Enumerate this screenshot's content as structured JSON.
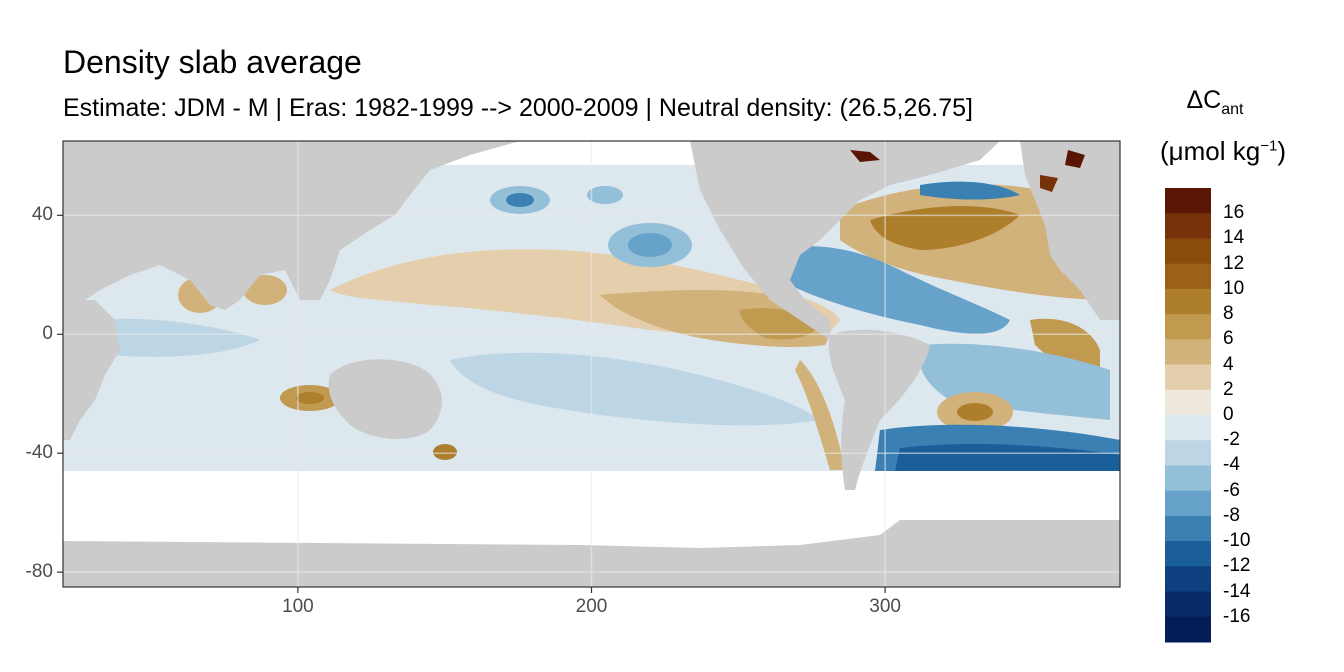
{
  "title": "Density slab average",
  "subtitle": "Estimate: JDM - M | Eras: 1982-1999 --> 2000-2009 | Neutral density: (26.5,26.75]",
  "map": {
    "lon_range": [
      20,
      380
    ],
    "lat_range": [
      -85,
      65
    ],
    "x_ticks": [
      100,
      200,
      300
    ],
    "x_tick_labels": [
      "100",
      "200",
      "300"
    ],
    "y_ticks": [
      40,
      0,
      -40,
      -80
    ],
    "y_tick_labels": [
      "40",
      "0",
      "-40",
      "-80"
    ],
    "land_color": "#cbcbcb",
    "missing_color": "#ffffff",
    "grid_color": "#ebebeb"
  },
  "legend": {
    "title_main": "ΔC",
    "title_sub": "ant",
    "unit_open": "(μmol kg",
    "unit_sup": "−1",
    "unit_close": ")",
    "labels": [
      "16",
      "14",
      "12",
      "10",
      "8",
      "6",
      "4",
      "2",
      "0",
      "-2",
      "-4",
      "-6",
      "-8",
      "-10",
      "-12",
      "-14",
      "-16"
    ],
    "colors": [
      "#5a1604",
      "#77320a",
      "#8b4b0b",
      "#9b6117",
      "#ad7f2c",
      "#c09a4f",
      "#d2b27b",
      "#e4ceac",
      "#ede7dc",
      "#dde7ee",
      "#bdd6e6",
      "#93bfd9",
      "#66a2c9",
      "#3a80b3",
      "#1a5e9a",
      "#0e3f7e",
      "#082a69",
      "#051d57"
    ]
  }
}
